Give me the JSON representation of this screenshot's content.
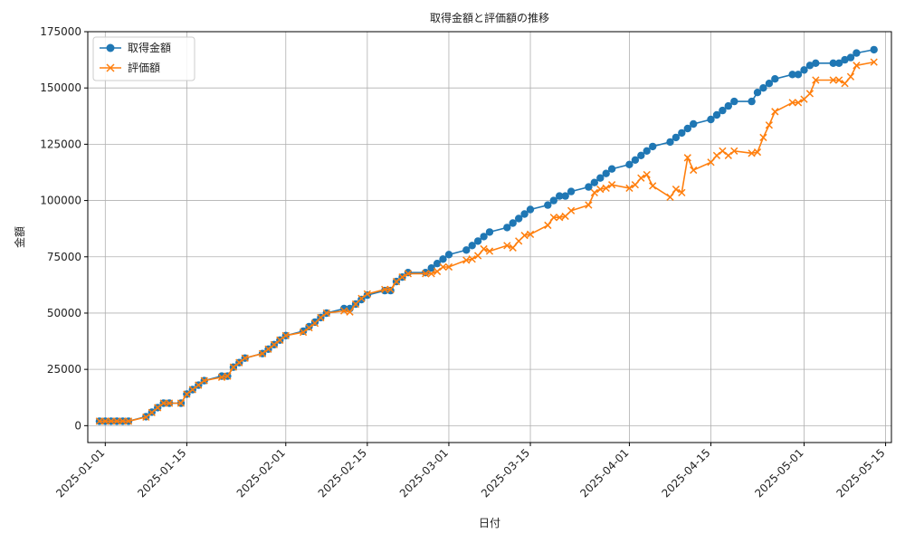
{
  "chart_data": {
    "type": "line",
    "title": "取得金額と評価額の推移",
    "xlabel": "日付",
    "ylabel": "金額",
    "x_type": "date",
    "xlim": [
      "2024-12-29",
      "2025-05-16"
    ],
    "ylim": [
      -7500,
      175000
    ],
    "x_ticks": [
      "2025-01-01",
      "2025-01-15",
      "2025-02-01",
      "2025-02-15",
      "2025-03-01",
      "2025-03-15",
      "2025-04-01",
      "2025-04-15",
      "2025-05-01",
      "2025-05-15"
    ],
    "y_ticks": [
      0,
      25000,
      50000,
      75000,
      100000,
      125000,
      150000,
      175000
    ],
    "y_tick_labels": [
      "0",
      "25000",
      "50000",
      "75000",
      "100000",
      "125000",
      "150000",
      "175000"
    ],
    "grid": true,
    "legend_position": "upper-left",
    "series": [
      {
        "name": "取得金額",
        "color": "#1f77b4",
        "marker": "circle",
        "points": [
          [
            "2024-12-31",
            2000
          ],
          [
            "2025-01-01",
            2000
          ],
          [
            "2025-01-02",
            2000
          ],
          [
            "2025-01-03",
            2000
          ],
          [
            "2025-01-04",
            2000
          ],
          [
            "2025-01-05",
            2000
          ],
          [
            "2025-01-08",
            4000
          ],
          [
            "2025-01-09",
            6000
          ],
          [
            "2025-01-10",
            8000
          ],
          [
            "2025-01-11",
            10000
          ],
          [
            "2025-01-12",
            10000
          ],
          [
            "2025-01-14",
            10000
          ],
          [
            "2025-01-15",
            14000
          ],
          [
            "2025-01-16",
            16000
          ],
          [
            "2025-01-17",
            18000
          ],
          [
            "2025-01-18",
            20000
          ],
          [
            "2025-01-21",
            22000
          ],
          [
            "2025-01-22",
            22000
          ],
          [
            "2025-01-23",
            26000
          ],
          [
            "2025-01-24",
            28000
          ],
          [
            "2025-01-25",
            30000
          ],
          [
            "2025-01-28",
            32000
          ],
          [
            "2025-01-29",
            34000
          ],
          [
            "2025-01-30",
            36000
          ],
          [
            "2025-01-31",
            38000
          ],
          [
            "2025-02-01",
            40000
          ],
          [
            "2025-02-04",
            42000
          ],
          [
            "2025-02-05",
            44000
          ],
          [
            "2025-02-06",
            46000
          ],
          [
            "2025-02-07",
            48000
          ],
          [
            "2025-02-08",
            50000
          ],
          [
            "2025-02-11",
            52000
          ],
          [
            "2025-02-12",
            52000
          ],
          [
            "2025-02-13",
            54000
          ],
          [
            "2025-02-14",
            56000
          ],
          [
            "2025-02-15",
            58000
          ],
          [
            "2025-02-18",
            60000
          ],
          [
            "2025-02-19",
            60000
          ],
          [
            "2025-02-20",
            64000
          ],
          [
            "2025-02-21",
            66000
          ],
          [
            "2025-02-22",
            68000
          ],
          [
            "2025-02-25",
            68000
          ],
          [
            "2025-02-26",
            70000
          ],
          [
            "2025-02-27",
            72000
          ],
          [
            "2025-02-28",
            74000
          ],
          [
            "2025-03-01",
            76000
          ],
          [
            "2025-03-04",
            78000
          ],
          [
            "2025-03-05",
            80000
          ],
          [
            "2025-03-06",
            82000
          ],
          [
            "2025-03-07",
            84000
          ],
          [
            "2025-03-08",
            86000
          ],
          [
            "2025-03-11",
            88000
          ],
          [
            "2025-03-12",
            90000
          ],
          [
            "2025-03-13",
            92000
          ],
          [
            "2025-03-14",
            94000
          ],
          [
            "2025-03-15",
            96000
          ],
          [
            "2025-03-18",
            98000
          ],
          [
            "2025-03-19",
            100000
          ],
          [
            "2025-03-20",
            102000
          ],
          [
            "2025-03-21",
            102000
          ],
          [
            "2025-03-22",
            104000
          ],
          [
            "2025-03-25",
            106000
          ],
          [
            "2025-03-26",
            108000
          ],
          [
            "2025-03-27",
            110000
          ],
          [
            "2025-03-28",
            112000
          ],
          [
            "2025-03-29",
            114000
          ],
          [
            "2025-04-01",
            116000
          ],
          [
            "2025-04-02",
            118000
          ],
          [
            "2025-04-03",
            120000
          ],
          [
            "2025-04-04",
            122000
          ],
          [
            "2025-04-05",
            124000
          ],
          [
            "2025-04-08",
            126000
          ],
          [
            "2025-04-09",
            128000
          ],
          [
            "2025-04-10",
            130000
          ],
          [
            "2025-04-11",
            132000
          ],
          [
            "2025-04-12",
            134000
          ],
          [
            "2025-04-15",
            136000
          ],
          [
            "2025-04-16",
            138000
          ],
          [
            "2025-04-17",
            140000
          ],
          [
            "2025-04-18",
            142000
          ],
          [
            "2025-04-19",
            144000
          ],
          [
            "2025-04-22",
            144000
          ],
          [
            "2025-04-23",
            148000
          ],
          [
            "2025-04-24",
            150000
          ],
          [
            "2025-04-25",
            152000
          ],
          [
            "2025-04-26",
            154000
          ],
          [
            "2025-04-29",
            156000
          ],
          [
            "2025-04-30",
            156000
          ],
          [
            "2025-05-01",
            158000
          ],
          [
            "2025-05-02",
            160000
          ],
          [
            "2025-05-03",
            161000
          ],
          [
            "2025-05-06",
            161000
          ],
          [
            "2025-05-07",
            161000
          ],
          [
            "2025-05-08",
            162500
          ],
          [
            "2025-05-09",
            163500
          ],
          [
            "2025-05-10",
            165500
          ],
          [
            "2025-05-13",
            167000
          ]
        ]
      },
      {
        "name": "評価額",
        "color": "#ff7f0e",
        "marker": "x",
        "points": [
          [
            "2024-12-31",
            2000
          ],
          [
            "2025-01-01",
            2000
          ],
          [
            "2025-01-02",
            2000
          ],
          [
            "2025-01-03",
            2000
          ],
          [
            "2025-01-04",
            2000
          ],
          [
            "2025-01-05",
            2000
          ],
          [
            "2025-01-08",
            3800
          ],
          [
            "2025-01-09",
            5800
          ],
          [
            "2025-01-10",
            8000
          ],
          [
            "2025-01-11",
            10000
          ],
          [
            "2025-01-12",
            10000
          ],
          [
            "2025-01-14",
            10000
          ],
          [
            "2025-01-15",
            14000
          ],
          [
            "2025-01-16",
            16000
          ],
          [
            "2025-01-17",
            18000
          ],
          [
            "2025-01-18",
            20000
          ],
          [
            "2025-01-21",
            21500
          ],
          [
            "2025-01-22",
            22000
          ],
          [
            "2025-01-23",
            26000
          ],
          [
            "2025-01-24",
            28000
          ],
          [
            "2025-01-25",
            30000
          ],
          [
            "2025-01-28",
            32000
          ],
          [
            "2025-01-29",
            34000
          ],
          [
            "2025-01-30",
            36000
          ],
          [
            "2025-01-31",
            38000
          ],
          [
            "2025-02-01",
            40000
          ],
          [
            "2025-02-04",
            41500
          ],
          [
            "2025-02-05",
            43500
          ],
          [
            "2025-02-06",
            45500
          ],
          [
            "2025-02-07",
            48000
          ],
          [
            "2025-02-08",
            50000
          ],
          [
            "2025-02-11",
            51000
          ],
          [
            "2025-02-12",
            50500
          ],
          [
            "2025-02-13",
            54000
          ],
          [
            "2025-02-14",
            56500
          ],
          [
            "2025-02-15",
            58500
          ],
          [
            "2025-02-18",
            60500
          ],
          [
            "2025-02-19",
            60500
          ],
          [
            "2025-02-20",
            64000
          ],
          [
            "2025-02-21",
            66000
          ],
          [
            "2025-02-22",
            67500
          ],
          [
            "2025-02-25",
            67500
          ],
          [
            "2025-02-26",
            67500
          ],
          [
            "2025-02-27",
            68500
          ],
          [
            "2025-02-28",
            70500
          ],
          [
            "2025-03-01",
            70500
          ],
          [
            "2025-03-04",
            73500
          ],
          [
            "2025-03-05",
            74000
          ],
          [
            "2025-03-06",
            75500
          ],
          [
            "2025-03-07",
            78500
          ],
          [
            "2025-03-08",
            77500
          ],
          [
            "2025-03-11",
            80000
          ],
          [
            "2025-03-12",
            79000
          ],
          [
            "2025-03-13",
            82000
          ],
          [
            "2025-03-14",
            84500
          ],
          [
            "2025-03-15",
            85000
          ],
          [
            "2025-03-18",
            89000
          ],
          [
            "2025-03-19",
            92500
          ],
          [
            "2025-03-20",
            92500
          ],
          [
            "2025-03-21",
            93000
          ],
          [
            "2025-03-22",
            95500
          ],
          [
            "2025-03-25",
            98000
          ],
          [
            "2025-03-26",
            103500
          ],
          [
            "2025-03-27",
            105000
          ],
          [
            "2025-03-28",
            105500
          ],
          [
            "2025-03-29",
            107000
          ],
          [
            "2025-04-01",
            105500
          ],
          [
            "2025-04-02",
            107000
          ],
          [
            "2025-04-03",
            110000
          ],
          [
            "2025-04-04",
            111500
          ],
          [
            "2025-04-05",
            106500
          ],
          [
            "2025-04-08",
            101500
          ],
          [
            "2025-04-09",
            105000
          ],
          [
            "2025-04-10",
            103500
          ],
          [
            "2025-04-11",
            119000
          ],
          [
            "2025-04-12",
            113500
          ],
          [
            "2025-04-15",
            117000
          ],
          [
            "2025-04-16",
            120000
          ],
          [
            "2025-04-17",
            122000
          ],
          [
            "2025-04-18",
            120000
          ],
          [
            "2025-04-19",
            122000
          ],
          [
            "2025-04-22",
            121000
          ],
          [
            "2025-04-23",
            121500
          ],
          [
            "2025-04-24",
            128000
          ],
          [
            "2025-04-25",
            133500
          ],
          [
            "2025-04-26",
            139500
          ],
          [
            "2025-04-29",
            143500
          ],
          [
            "2025-04-30",
            143500
          ],
          [
            "2025-05-01",
            145000
          ],
          [
            "2025-05-02",
            147500
          ],
          [
            "2025-05-03",
            153500
          ],
          [
            "2025-05-06",
            153500
          ],
          [
            "2025-05-07",
            153500
          ],
          [
            "2025-05-08",
            152000
          ],
          [
            "2025-05-09",
            155000
          ],
          [
            "2025-05-10",
            160000
          ],
          [
            "2025-05-13",
            161500
          ]
        ]
      }
    ]
  }
}
